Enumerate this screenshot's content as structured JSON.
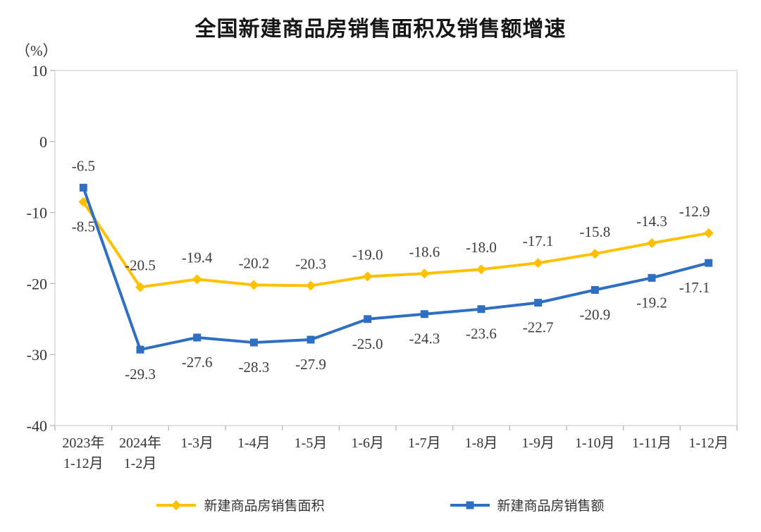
{
  "page": {
    "title": "全国新建商品房销售面积及销售额增速",
    "y_axis_unit": "（%）"
  },
  "colors": {
    "area_series": "#FFC000",
    "sales_series": "#2E6FC4",
    "plot_border": "#D9D9D9",
    "axis_tick": "#BFBFBF",
    "text": "#333333"
  },
  "chart_data": {
    "type": "line",
    "title": "全国新建商品房销售面积及销售额增速",
    "ylabel": "（%）",
    "ylim": [
      -40,
      10
    ],
    "y_ticks": [
      10,
      0,
      -10,
      -20,
      -30,
      -40
    ],
    "grid": false,
    "legend_position": "bottom",
    "categories": [
      "2023年\n1-12月",
      "2024年\n1-2月",
      "1-3月",
      "1-4月",
      "1-5月",
      "1-6月",
      "1-7月",
      "1-8月",
      "1-9月",
      "1-10月",
      "1-11月",
      "1-12月"
    ],
    "series": [
      {
        "name": "新建商品房销售面积",
        "color": "#FFC000",
        "marker": "diamond",
        "label_position": "above",
        "first_label_position": "below",
        "values": [
          -8.5,
          -20.5,
          -19.4,
          -20.2,
          -20.3,
          -19.0,
          -18.6,
          -18.0,
          -17.1,
          -15.8,
          -14.3,
          -12.9
        ]
      },
      {
        "name": "新建商品房销售额",
        "color": "#2E6FC4",
        "marker": "square",
        "label_position": "below",
        "first_label_position": "above",
        "values": [
          -6.5,
          -29.3,
          -27.6,
          -28.3,
          -27.9,
          -25.0,
          -24.3,
          -23.6,
          -22.7,
          -20.9,
          -19.2,
          -17.1
        ]
      }
    ]
  }
}
